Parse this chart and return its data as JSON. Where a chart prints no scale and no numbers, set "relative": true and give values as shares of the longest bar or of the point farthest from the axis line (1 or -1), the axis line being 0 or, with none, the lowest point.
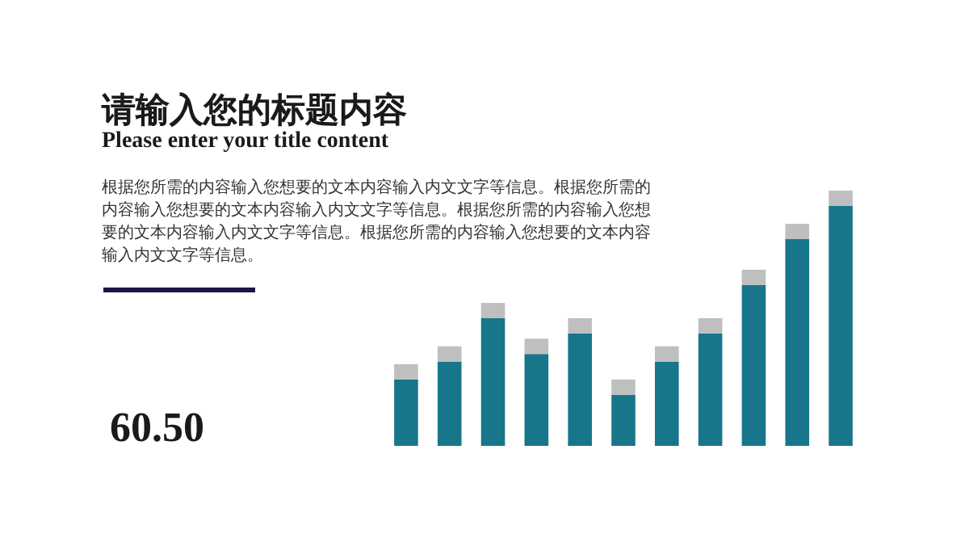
{
  "chart_data": {
    "type": "bar",
    "stacked": true,
    "relative": true,
    "title": "请输入您的标题内容",
    "subtitle": "Please enter your title content",
    "annotations": [
      "根据您所需的内容输入您想要的文本内容输入内文文字等信息。根据您所需的内容输入您想要的文本内容输入内文文字等信息。根据您所需的内容输入您想要的文本内容输入内文文字等信息。根据您所需的内容输入您想要的文本内容输入内文文字等信息。",
      "60.50"
    ],
    "categories": [
      null,
      null,
      null,
      null,
      null,
      null,
      null,
      null,
      null,
      null,
      null
    ],
    "series": [
      {
        "color": "#17768a",
        "values": [
          0.26,
          0.33,
          0.5,
          0.36,
          0.44,
          0.2,
          0.33,
          0.44,
          0.63,
          0.81,
          0.94
        ]
      },
      {
        "color": "#bfbfbf",
        "values": [
          0.06,
          0.06,
          0.06,
          0.06,
          0.06,
          0.06,
          0.06,
          0.06,
          0.06,
          0.06,
          0.06
        ]
      }
    ]
  }
}
